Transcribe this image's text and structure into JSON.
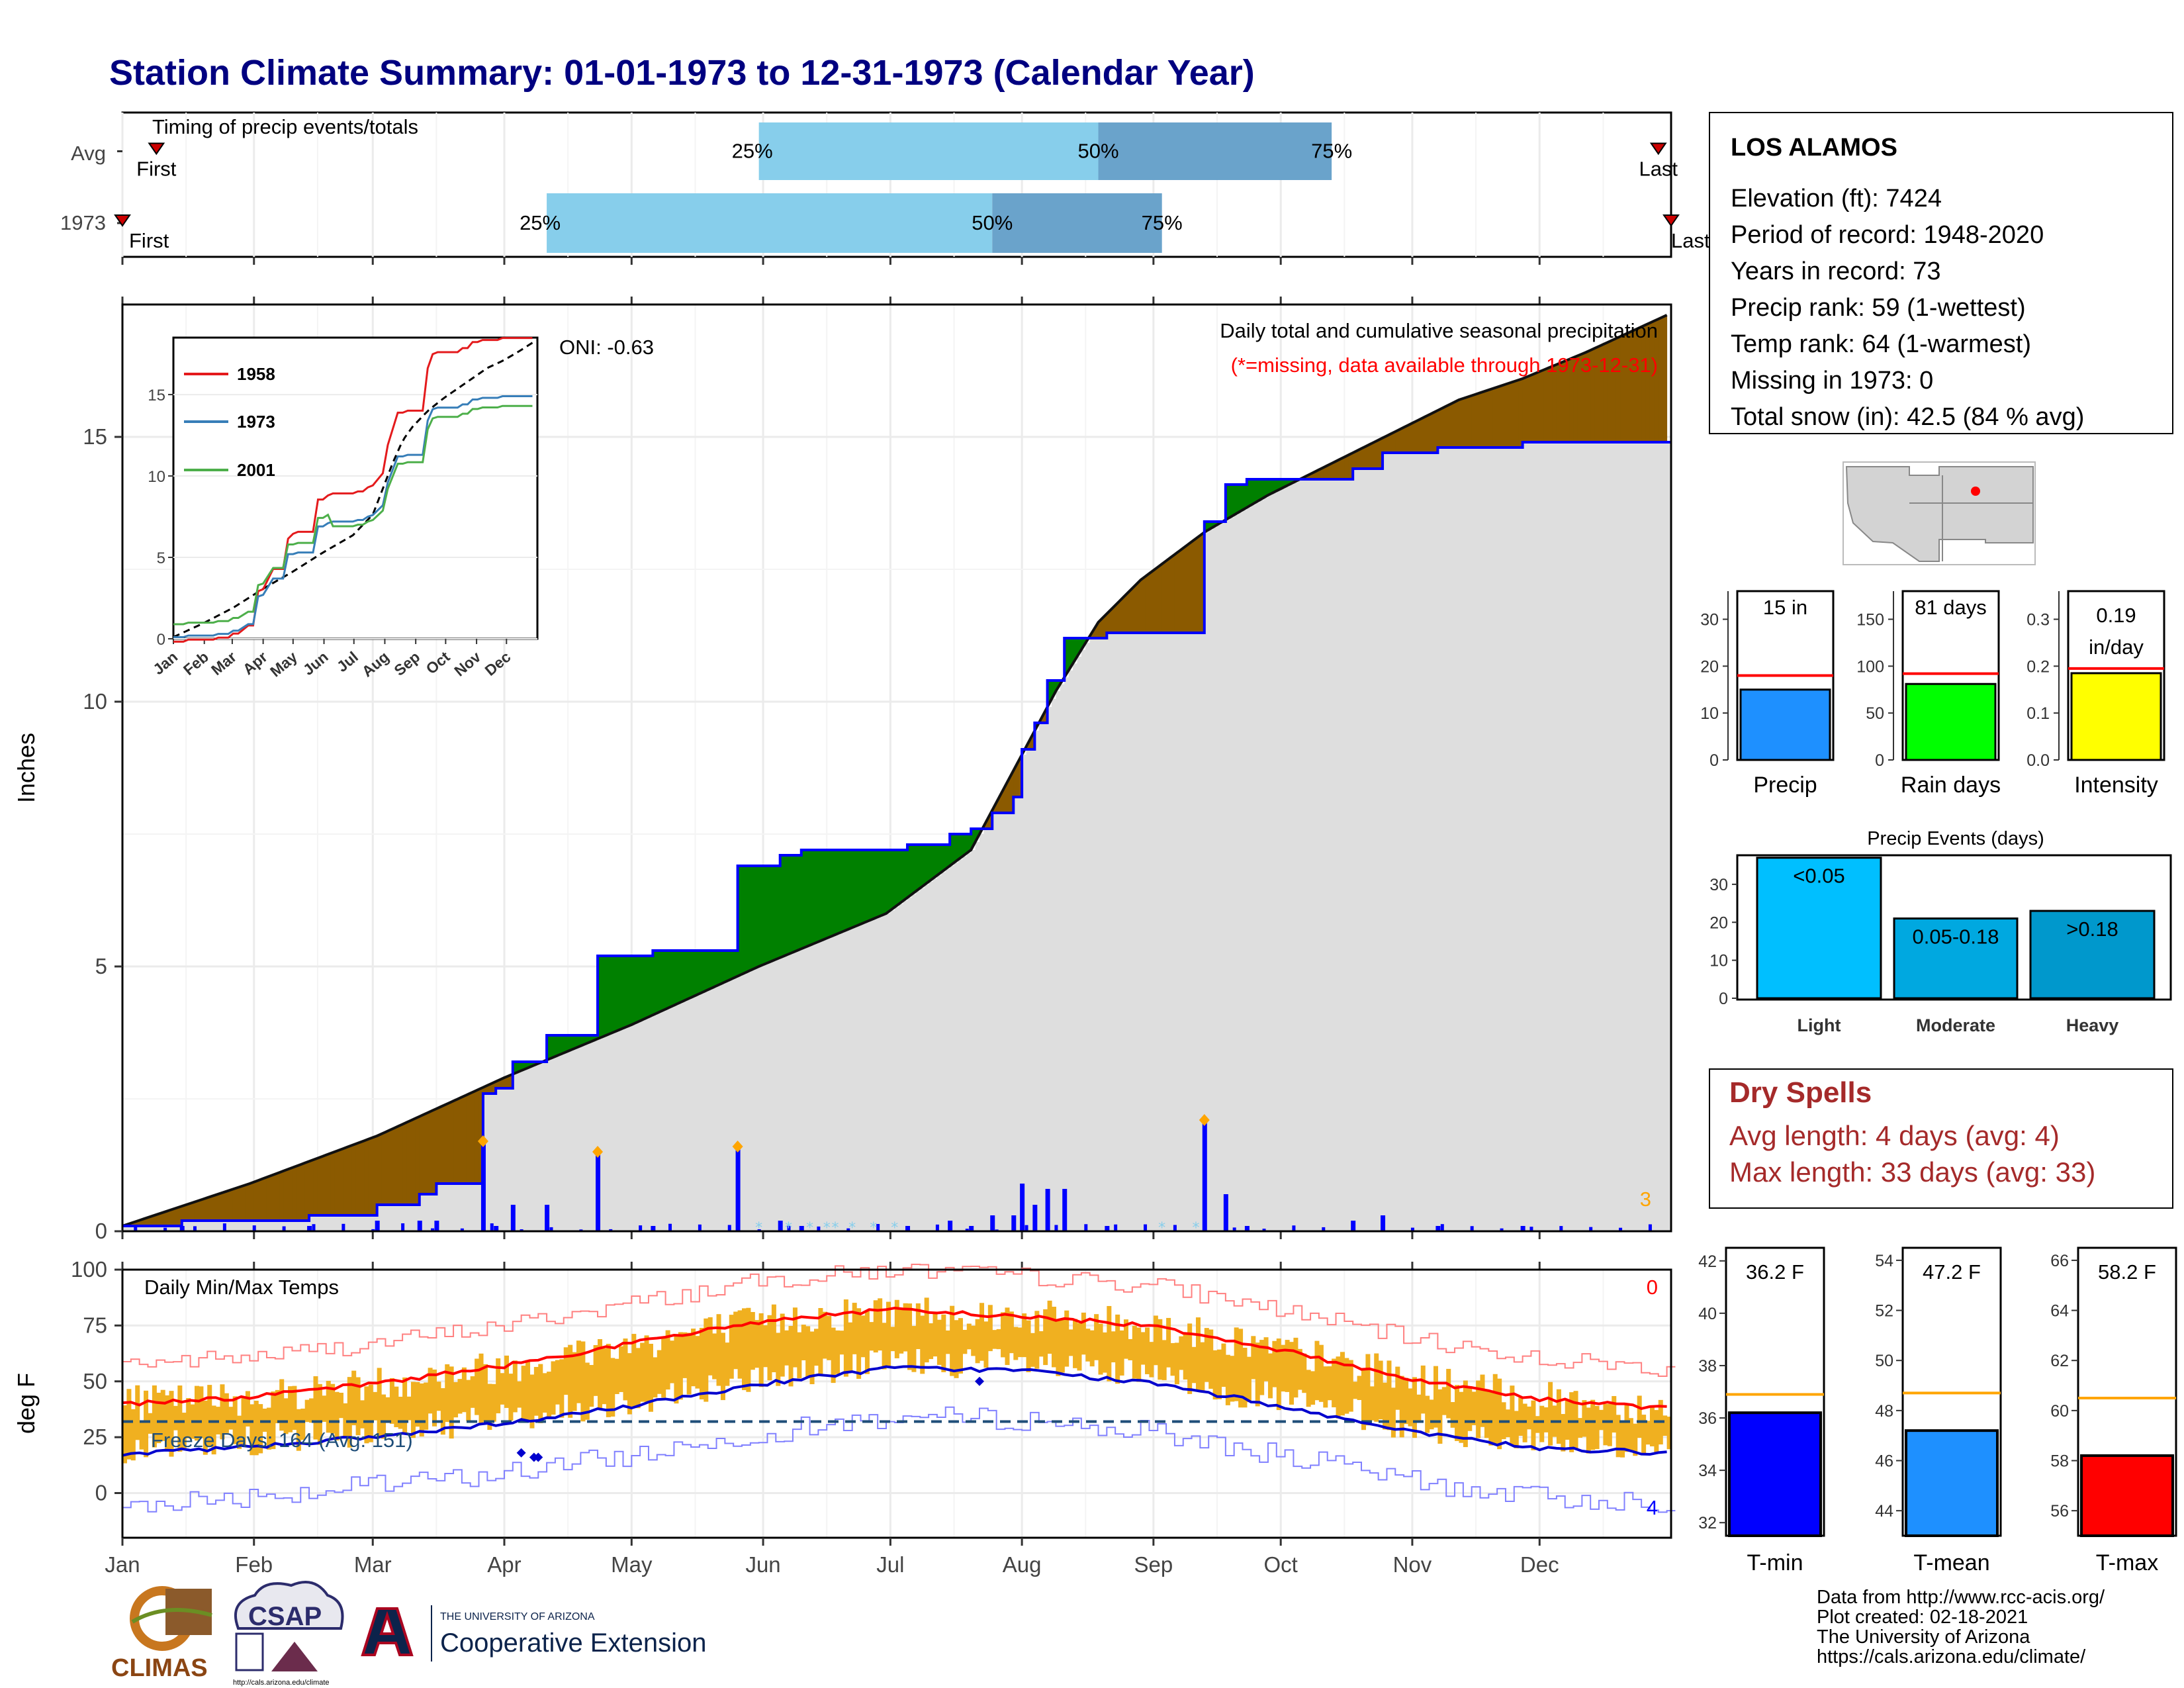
{
  "title": "Station Climate Summary: 01-01-1973 to 12-31-1973 (Calendar Year)",
  "colors": {
    "title": "#000080",
    "wet_surplus": "#008000",
    "dry_deficit": "#8B5A00",
    "avg_area": "#dedede",
    "cum_line": "#0000ff",
    "daily_bar": "#0000ff",
    "q1": "#87ceeb",
    "q2": "#6aa3cb",
    "temp_bar": "#f0b020",
    "tmax_avg": "#ff0000",
    "tmin_avg": "#0000cd",
    "dry_spells": "#a52a2a",
    "precip_box": "#1e90ff",
    "rain_box": "#00ff00",
    "intensity_box": "#ffff00",
    "light": "#00bfff",
    "moderate": "#00a8e0",
    "heavy": "#0098cc",
    "tmin_box": "#0000ff",
    "tmean_box": "#1e90ff",
    "tmax_box": "#ff0000",
    "missing_marker": "#ffa500"
  },
  "timing": {
    "label": "Timing of precip events/totals",
    "rows": [
      {
        "name": "Avg",
        "first_label": "First",
        "last_label": "Last",
        "q25": "25%",
        "q50": "50%",
        "q75": "75%",
        "p25_day": 150,
        "p50_day": 230,
        "p75_day": 285,
        "first_day": 8,
        "last_day": 362
      },
      {
        "name": "1973",
        "first_label": "First",
        "last_label": "Last",
        "q25": "25%",
        "q50": "50%",
        "q75": "75%",
        "p25_day": 100,
        "p50_day": 205,
        "p75_day": 245,
        "first_day": 0,
        "last_day": 365
      }
    ]
  },
  "precip": {
    "ylabel": "Inches",
    "oni": "ONI: -0.63",
    "desc": "Daily total and cumulative seasonal precipitation",
    "missing_note": "(*=missing, data available through 1973-12-31)",
    "corner_count": "3",
    "inset": {
      "series": [
        {
          "name": "1958",
          "color": "#e41a1c"
        },
        {
          "name": "1973",
          "color": "#377eb8"
        },
        {
          "name": "2001",
          "color": "#4daf4a"
        }
      ]
    }
  },
  "temps": {
    "label": "Daily Min/Max Temps",
    "ylabel": "deg F",
    "freeze_text": "Freeze Days: 164 (Avg: 151)",
    "max_count": "0",
    "min_count": "4"
  },
  "months": [
    "Jan",
    "Feb",
    "Mar",
    "Apr",
    "May",
    "Jun",
    "Jul",
    "Aug",
    "Sep",
    "Oct",
    "Nov",
    "Dec"
  ],
  "station": {
    "name": "LOS ALAMOS",
    "lines": [
      "Elevation (ft): 7424",
      "Period of record: 1948-2020",
      "Years in record: 73",
      "Precip rank: 59 (1-wettest)",
      "Temp rank: 64 (1-warmest)",
      "Missing in 1973: 0",
      "Total snow (in): 42.5 (84 % avg)"
    ]
  },
  "mini_bars": [
    {
      "label": "Precip",
      "value_text": "15 in",
      "value": 15,
      "avg": 18,
      "ymax": 36,
      "ticks": [
        0,
        10,
        20,
        30
      ],
      "color": "#1e90ff"
    },
    {
      "label": "Rain days",
      "value_text": "81 days",
      "value": 81,
      "avg": 92,
      "ymax": 180,
      "ticks": [
        0,
        50,
        100,
        150
      ],
      "color": "#00ff00"
    },
    {
      "label": "Intensity",
      "value_text": "0.19 in/day",
      "value": 0.185,
      "avg": 0.195,
      "ymax": 0.36,
      "ticks": [
        "0.0",
        "0.1",
        "0.2",
        "0.3"
      ],
      "color": "#ffff00"
    }
  ],
  "events": {
    "title": "Precip Events (days)",
    "bars": [
      {
        "label": "Light",
        "value_text": "<0.05",
        "value": 37,
        "color": "#00bfff"
      },
      {
        "label": "Moderate",
        "value_text": "0.05-0.18",
        "value": 21,
        "color": "#00a8e0"
      },
      {
        "label": "Heavy",
        "value_text": ">0.18",
        "value": 23,
        "color": "#0098cc"
      }
    ],
    "ticks": [
      0,
      10,
      20,
      30
    ]
  },
  "dry_spells": {
    "title": "Dry Spells",
    "avg": "Avg length: 4 days (avg: 4)",
    "max": "Max length: 33 days (avg: 33)"
  },
  "temp_boxes": [
    {
      "label": "T-min",
      "value_text": "36.2 F",
      "value": 36.2,
      "avg": 36.9,
      "ymin": 31.5,
      "ymax": 42.5,
      "ticks": [
        32,
        34,
        36,
        38,
        40,
        42
      ],
      "color": "#0000ff"
    },
    {
      "label": "T-mean",
      "value_text": "47.2 F",
      "value": 47.2,
      "avg": 48.7,
      "ymin": 43,
      "ymax": 54.5,
      "ticks": [
        44,
        46,
        48,
        50,
        52,
        54
      ],
      "color": "#1e90ff"
    },
    {
      "label": "T-max",
      "value_text": "58.2 F",
      "value": 58.2,
      "avg": 60.5,
      "ymin": 55,
      "ymax": 66.5,
      "ticks": [
        56,
        58,
        60,
        62,
        64,
        66
      ],
      "color": "#ff0000"
    }
  ],
  "footer": [
    "Data from http://www.rcc-acis.org/",
    "Plot created: 02-18-2021",
    "The University of Arizona",
    "https://cals.arizona.edu/climate/"
  ],
  "logos": {
    "climas": "CLIMAS",
    "csap": "CSAP",
    "csap_url": "http://cals.arizona.edu/climate",
    "ua_small": "THE UNIVERSITY OF ARIZONA",
    "ua_big": "Cooperative Extension"
  },
  "chart_data": [
    {
      "type": "area",
      "title": "Daily total and cumulative seasonal precipitation",
      "ylabel": "Inches",
      "ylim": [
        0,
        17.5
      ],
      "xlim": [
        "Jan",
        "Dec"
      ],
      "series": [
        {
          "name": "1973 cumulative",
          "x": [
            0,
            14,
            44,
            60,
            70,
            74,
            80,
            85,
            88,
            92,
            100,
            112,
            125,
            140,
            145,
            150,
            155,
            160,
            170,
            185,
            195,
            200,
            205,
            210,
            212,
            215,
            218,
            222,
            232,
            238,
            255,
            260,
            265,
            290,
            297,
            305,
            310,
            325,
            330,
            340,
            350,
            364
          ],
          "values": [
            0.1,
            0.2,
            0.3,
            0.5,
            0.7,
            0.9,
            0.9,
            2.6,
            2.7,
            3.2,
            3.7,
            5.2,
            5.3,
            5.3,
            6.9,
            6.9,
            7.1,
            7.2,
            7.2,
            7.3,
            7.5,
            7.6,
            7.9,
            8.2,
            9.1,
            9.6,
            10.4,
            11.2,
            11.3,
            11.3,
            13.4,
            14.1,
            14.2,
            14.4,
            14.7,
            14.7,
            14.8,
            14.8,
            14.9,
            14.9,
            14.9,
            14.9
          ]
        },
        {
          "name": "Average cumulative",
          "x": [
            0,
            30,
            60,
            90,
            120,
            150,
            180,
            200,
            210,
            220,
            230,
            240,
            255,
            270,
            285,
            300,
            315,
            330,
            345,
            364
          ],
          "values": [
            0.1,
            0.9,
            1.8,
            2.9,
            3.9,
            5.0,
            6.0,
            7.2,
            8.7,
            10.2,
            11.5,
            12.3,
            13.2,
            13.9,
            14.5,
            15.1,
            15.7,
            16.1,
            16.6,
            17.3
          ]
        }
      ]
    },
    {
      "type": "line",
      "title": "Daily Min/Max Temps",
      "ylabel": "deg F",
      "ylim": [
        -20,
        100
      ],
      "series": [
        {
          "name": "Avg max",
          "x": [
            0,
            31,
            59,
            90,
            120,
            151,
            181,
            212,
            243,
            273,
            304,
            334,
            364
          ],
          "values": [
            40,
            43,
            49,
            57,
            67,
            77,
            82,
            79,
            75,
            64,
            51,
            42,
            38
          ]
        },
        {
          "name": "Avg min",
          "x": [
            0,
            31,
            59,
            90,
            120,
            151,
            181,
            212,
            243,
            273,
            304,
            334,
            364
          ],
          "values": [
            17,
            21,
            25,
            31,
            39,
            49,
            56,
            55,
            49,
            39,
            27,
            20,
            18
          ]
        },
        {
          "name": "Freeze line",
          "x": [
            0,
            364
          ],
          "values": [
            32,
            32
          ]
        }
      ]
    }
  ]
}
